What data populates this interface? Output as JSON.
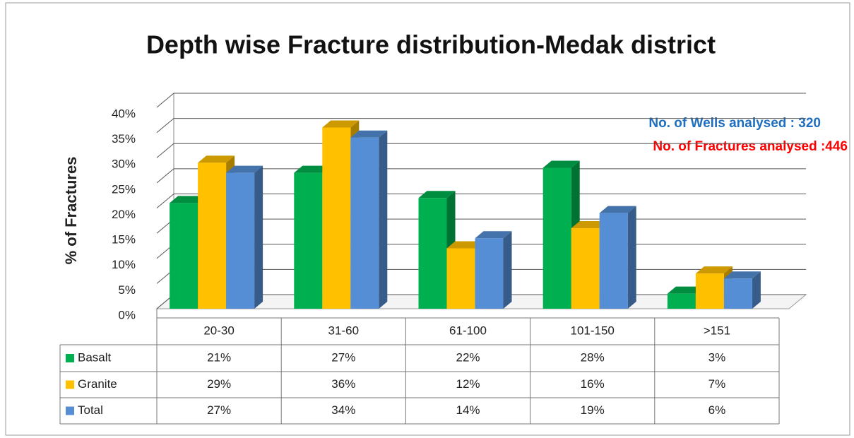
{
  "chart_data": {
    "type": "bar3d",
    "title": "Depth wise Fracture distribution-Medak district",
    "y_label": "% of  Fractures",
    "annotations": [
      "No. of Wells analysed : 320",
      "No. of Fractures analysed :446"
    ],
    "categories": [
      "20-30",
      "31-60",
      "61-100",
      "101-150",
      ">151"
    ],
    "series": [
      {
        "name": "Basalt",
        "color": "#00b050",
        "values": [
          21,
          27,
          22,
          28,
          3
        ],
        "value_labels": [
          "21%",
          "27%",
          "22%",
          "28%",
          "3%"
        ]
      },
      {
        "name": "Granite",
        "color": "#ffc000",
        "values": [
          29,
          36,
          12,
          16,
          7
        ],
        "value_labels": [
          "29%",
          "36%",
          "12%",
          "16%",
          "7%"
        ]
      },
      {
        "name": "Total",
        "color": "#558ed5",
        "values": [
          27,
          34,
          14,
          19,
          6
        ],
        "value_labels": [
          "27%",
          "34%",
          "14%",
          "19%",
          "6%"
        ]
      }
    ],
    "ylim": [
      0,
      40
    ],
    "yticks": [
      {
        "value": 0,
        "label": "0%"
      },
      {
        "value": 5,
        "label": "5%"
      },
      {
        "value": 10,
        "label": "10%"
      },
      {
        "value": 15,
        "label": "15%"
      },
      {
        "value": 20,
        "label": "20%"
      },
      {
        "value": 25,
        "label": "25%"
      },
      {
        "value": 30,
        "label": "30%"
      },
      {
        "value": 35,
        "label": "35%"
      },
      {
        "value": 40,
        "label": "40%"
      }
    ],
    "grid": true
  }
}
